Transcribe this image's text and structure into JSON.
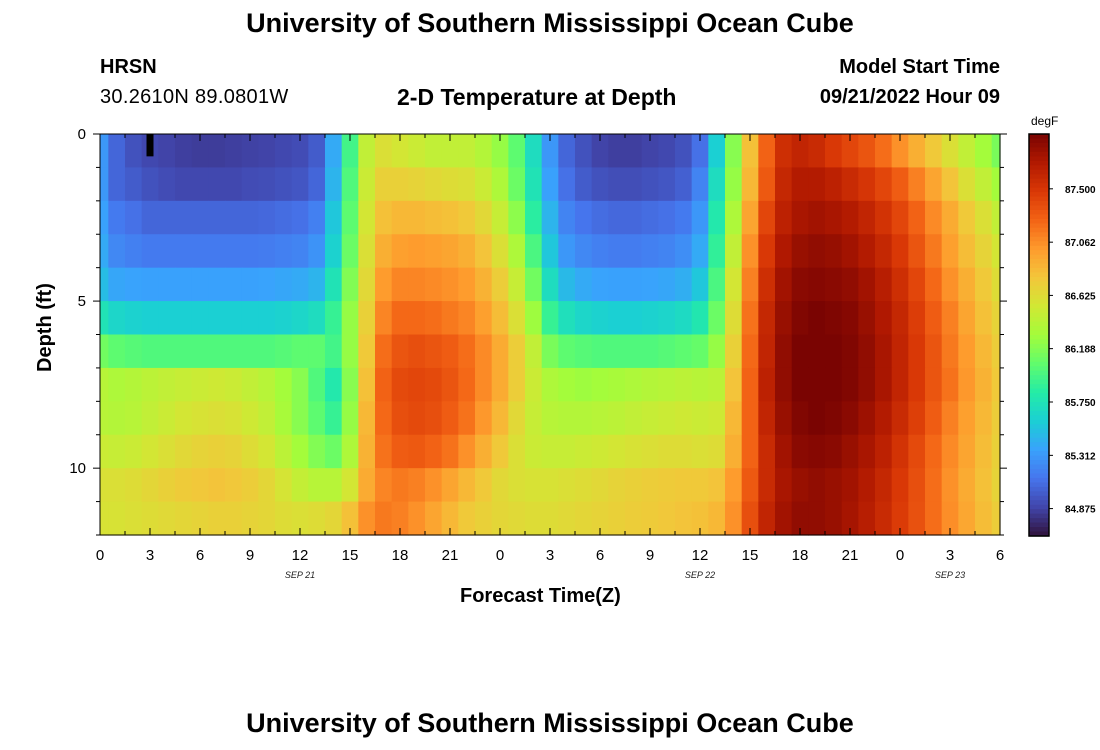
{
  "header": {
    "title_top": "University of Southern Mississippi Ocean Cube",
    "station": "HRSN",
    "coords": "30.2610N  89.0801W",
    "plot_title": "2-D Temperature at Depth",
    "model_start_label": "Model Start Time",
    "model_start_value": "09/21/2022 Hour 09",
    "title_bottom": "University of Southern Mississippi Ocean Cube"
  },
  "chart_data": {
    "type": "heatmap",
    "title": "2-D Temperature at Depth",
    "xlabel": "Forecast Time(Z)",
    "ylabel": "Depth (ft)",
    "x_range_hours": [
      0,
      54
    ],
    "depth_range_ft": [
      0,
      12
    ],
    "time_step_hours": 1,
    "depth_rows": 12,
    "x_tick_labels": [
      "0",
      "3",
      "6",
      "9",
      "12",
      "15",
      "18",
      "21",
      "0",
      "3",
      "6",
      "9",
      "12",
      "15",
      "18",
      "21",
      "0",
      "3",
      "6"
    ],
    "x_date_labels": [
      {
        "label": "SEP 21",
        "hour": 12
      },
      {
        "label": "SEP 22",
        "hour": 36
      },
      {
        "label": "SEP 23",
        "hour": 51
      }
    ],
    "y_ticks": [
      0,
      5,
      10
    ],
    "y_tick_labels": [
      "0",
      "5",
      "10"
    ],
    "colorbar": {
      "unit": "degF",
      "min": 84.65,
      "max": 87.95,
      "tick_values": [
        84.875,
        85.312,
        85.75,
        86.188,
        86.625,
        87.062,
        87.5
      ],
      "tick_labels": [
        "84.875",
        "85.312",
        "85.750",
        "86.188",
        "86.625",
        "87.062",
        "87.500"
      ],
      "colors": [
        "#30123b",
        "#4145ab",
        "#4675ed",
        "#39a2fc",
        "#1bcfd4",
        "#24eca6",
        "#61fc6c",
        "#a4fc3b",
        "#d1e834",
        "#f3c63a",
        "#fe9b2d",
        "#f36315",
        "#d93806",
        "#b11901",
        "#7a0402"
      ]
    },
    "marker": {
      "hour": 3,
      "depth_ft": 0.25
    },
    "temperature_degF": [
      [
        85.3,
        85.05,
        84.95,
        84.9,
        84.88,
        84.86,
        84.85,
        84.85,
        84.86,
        84.87,
        84.88,
        84.9,
        84.92,
        85.0,
        85.4,
        85.95,
        86.45,
        86.6,
        86.55,
        86.5,
        86.45,
        86.45,
        86.45,
        86.38,
        86.25,
        86.05,
        85.7,
        85.3,
        85.05,
        84.95,
        84.88,
        84.86,
        84.86,
        84.88,
        84.9,
        84.95,
        85.1,
        85.6,
        86.2,
        86.8,
        87.25,
        87.55,
        87.62,
        87.58,
        87.48,
        87.4,
        87.32,
        87.2,
        87.05,
        86.9,
        86.75,
        86.6,
        86.45,
        86.3,
        86.15
      ],
      [
        85.3,
        85.05,
        85.0,
        84.95,
        84.92,
        84.9,
        84.9,
        84.9,
        84.9,
        84.92,
        84.93,
        84.95,
        84.97,
        85.05,
        85.45,
        86.0,
        86.5,
        86.7,
        86.7,
        86.68,
        86.65,
        86.62,
        86.6,
        86.5,
        86.35,
        86.1,
        85.75,
        85.35,
        85.1,
        85.0,
        84.95,
        84.93,
        84.93,
        84.95,
        84.97,
        85.02,
        85.2,
        85.7,
        86.25,
        86.85,
        87.3,
        87.6,
        87.7,
        87.7,
        87.65,
        87.58,
        87.5,
        87.4,
        87.28,
        87.12,
        86.95,
        86.78,
        86.6,
        86.45,
        86.3
      ],
      [
        85.35,
        85.15,
        85.1,
        85.05,
        85.05,
        85.05,
        85.05,
        85.05,
        85.05,
        85.05,
        85.06,
        85.08,
        85.1,
        85.18,
        85.55,
        86.05,
        86.55,
        86.8,
        86.85,
        86.85,
        86.82,
        86.8,
        86.75,
        86.65,
        86.48,
        86.22,
        85.85,
        85.45,
        85.2,
        85.12,
        85.08,
        85.06,
        85.06,
        85.08,
        85.1,
        85.15,
        85.3,
        85.8,
        86.35,
        86.95,
        87.4,
        87.65,
        87.75,
        87.78,
        87.75,
        87.7,
        87.62,
        87.52,
        87.4,
        87.25,
        87.08,
        86.92,
        86.75,
        86.6,
        86.45
      ],
      [
        85.4,
        85.22,
        85.18,
        85.15,
        85.15,
        85.15,
        85.15,
        85.15,
        85.15,
        85.15,
        85.16,
        85.18,
        85.2,
        85.28,
        85.62,
        86.1,
        86.6,
        86.9,
        86.98,
        87.0,
        86.98,
        86.95,
        86.9,
        86.78,
        86.6,
        86.35,
        85.98,
        85.55,
        85.3,
        85.22,
        85.18,
        85.16,
        85.16,
        85.18,
        85.2,
        85.25,
        85.4,
        85.88,
        86.45,
        87.05,
        87.48,
        87.72,
        87.82,
        87.85,
        87.83,
        87.78,
        87.7,
        87.6,
        87.48,
        87.32,
        87.15,
        86.98,
        86.82,
        86.68,
        86.55
      ],
      [
        85.5,
        85.38,
        85.36,
        85.35,
        85.35,
        85.35,
        85.35,
        85.35,
        85.35,
        85.35,
        85.36,
        85.38,
        85.4,
        85.45,
        85.75,
        86.18,
        86.65,
        87.0,
        87.1,
        87.1,
        87.08,
        87.05,
        87.0,
        86.88,
        86.72,
        86.48,
        86.12,
        85.7,
        85.48,
        85.4,
        85.36,
        85.35,
        85.35,
        85.36,
        85.38,
        85.42,
        85.55,
        85.98,
        86.55,
        87.12,
        87.55,
        87.78,
        87.88,
        87.9,
        87.88,
        87.85,
        87.78,
        87.68,
        87.55,
        87.4,
        87.22,
        87.05,
        86.9,
        86.75,
        86.62
      ],
      [
        85.75,
        85.65,
        85.62,
        85.6,
        85.6,
        85.6,
        85.6,
        85.6,
        85.6,
        85.6,
        85.6,
        85.62,
        85.65,
        85.7,
        85.9,
        86.25,
        86.7,
        87.1,
        87.22,
        87.22,
        87.2,
        87.15,
        87.1,
        86.98,
        86.82,
        86.6,
        86.28,
        85.9,
        85.72,
        85.65,
        85.62,
        85.6,
        85.6,
        85.62,
        85.64,
        85.68,
        85.78,
        86.1,
        86.62,
        87.18,
        87.6,
        87.82,
        87.92,
        87.95,
        87.93,
        87.9,
        87.82,
        87.72,
        87.6,
        87.45,
        87.28,
        87.12,
        86.95,
        86.8,
        86.68
      ],
      [
        86.12,
        86.05,
        86.02,
        86.0,
        86.0,
        86.0,
        86.0,
        86.0,
        86.0,
        86.0,
        86.0,
        86.02,
        86.05,
        86.05,
        85.95,
        86.25,
        86.75,
        87.2,
        87.32,
        87.35,
        87.32,
        87.28,
        87.2,
        87.08,
        86.92,
        86.72,
        86.45,
        86.15,
        86.05,
        86.02,
        86.0,
        86.0,
        86.0,
        86.0,
        86.02,
        86.05,
        86.08,
        86.25,
        86.7,
        87.22,
        87.62,
        87.85,
        87.95,
        87.98,
        87.96,
        87.92,
        87.85,
        87.75,
        87.62,
        87.48,
        87.32,
        87.15,
        87.0,
        86.85,
        86.72
      ],
      [
        86.4,
        86.35,
        86.38,
        86.42,
        86.45,
        86.48,
        86.5,
        86.52,
        86.5,
        86.45,
        86.4,
        86.3,
        86.2,
        86.0,
        85.8,
        86.2,
        86.8,
        87.25,
        87.38,
        87.4,
        87.38,
        87.32,
        87.22,
        87.08,
        86.92,
        86.72,
        86.5,
        86.35,
        86.3,
        86.28,
        86.3,
        86.32,
        86.35,
        86.38,
        86.4,
        86.42,
        86.4,
        86.42,
        86.78,
        87.25,
        87.65,
        87.85,
        87.95,
        87.98,
        87.96,
        87.92,
        87.85,
        87.75,
        87.62,
        87.48,
        87.32,
        87.18,
        87.02,
        86.88,
        86.75
      ],
      [
        86.4,
        86.38,
        86.4,
        86.45,
        86.5,
        86.55,
        86.58,
        86.6,
        86.58,
        86.52,
        86.45,
        86.32,
        86.2,
        86.05,
        85.9,
        86.25,
        86.85,
        87.22,
        87.35,
        87.38,
        87.35,
        87.28,
        87.18,
        87.02,
        86.85,
        86.65,
        86.48,
        86.4,
        86.38,
        86.38,
        86.4,
        86.42,
        86.45,
        86.48,
        86.5,
        86.52,
        86.5,
        86.52,
        86.85,
        87.25,
        87.62,
        87.82,
        87.92,
        87.95,
        87.93,
        87.88,
        87.8,
        87.7,
        87.58,
        87.44,
        87.28,
        87.12,
        86.98,
        86.85,
        86.72
      ],
      [
        86.5,
        86.48,
        86.5,
        86.55,
        86.6,
        86.65,
        86.68,
        86.7,
        86.68,
        86.62,
        86.55,
        86.42,
        86.3,
        86.18,
        86.1,
        86.35,
        86.88,
        87.18,
        87.28,
        87.3,
        87.25,
        87.18,
        87.05,
        86.9,
        86.75,
        86.6,
        86.5,
        86.48,
        86.48,
        86.5,
        86.52,
        86.55,
        86.58,
        86.6,
        86.62,
        86.62,
        86.6,
        86.62,
        86.9,
        87.25,
        87.58,
        87.78,
        87.88,
        87.9,
        87.88,
        87.82,
        87.75,
        87.65,
        87.52,
        87.38,
        87.22,
        87.08,
        86.95,
        86.82,
        86.7
      ],
      [
        86.6,
        86.6,
        86.62,
        86.66,
        86.7,
        86.74,
        86.76,
        86.78,
        86.76,
        86.72,
        86.66,
        86.56,
        86.46,
        86.4,
        86.4,
        86.55,
        86.92,
        87.1,
        87.15,
        87.12,
        87.05,
        86.95,
        86.85,
        86.75,
        86.65,
        86.6,
        86.58,
        86.58,
        86.6,
        86.62,
        86.65,
        86.68,
        86.7,
        86.72,
        86.74,
        86.75,
        86.75,
        86.78,
        87.0,
        87.3,
        87.58,
        87.75,
        87.82,
        87.85,
        87.82,
        87.78,
        87.7,
        87.6,
        87.48,
        87.35,
        87.2,
        87.05,
        86.92,
        86.8,
        86.68
      ],
      [
        86.58,
        86.58,
        86.6,
        86.62,
        86.64,
        86.66,
        86.68,
        86.7,
        86.7,
        86.68,
        86.66,
        86.62,
        86.6,
        86.62,
        86.66,
        86.8,
        87.05,
        87.15,
        87.12,
        87.05,
        86.95,
        86.85,
        86.75,
        86.7,
        86.66,
        86.64,
        86.62,
        86.62,
        86.64,
        86.66,
        86.68,
        86.7,
        86.72,
        86.74,
        86.76,
        86.78,
        86.8,
        86.85,
        87.05,
        87.35,
        87.62,
        87.78,
        87.85,
        87.85,
        87.82,
        87.76,
        87.68,
        87.58,
        87.46,
        87.34,
        87.2,
        87.06,
        86.94,
        86.82,
        86.72
      ]
    ]
  }
}
